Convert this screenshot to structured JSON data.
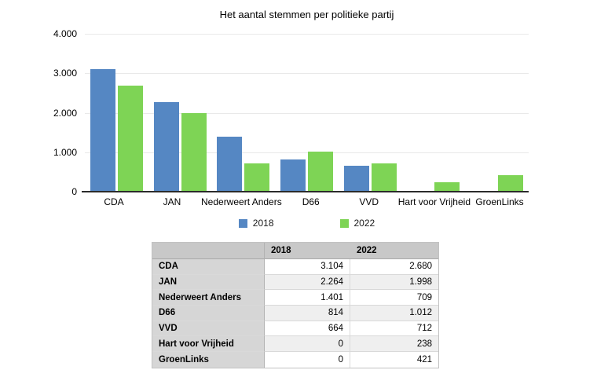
{
  "chart_data": {
    "type": "bar",
    "title": "Het aantal stemmen per politieke partij",
    "categories": [
      "CDA",
      "JAN",
      "Nederweert Anders",
      "D66",
      "VVD",
      "Hart voor Vrijheid",
      "GroenLinks"
    ],
    "series": [
      {
        "name": "2018",
        "color": "#5587c3",
        "values": [
          3104,
          2264,
          1401,
          814,
          664,
          0,
          0
        ]
      },
      {
        "name": "2022",
        "color": "#7ed455",
        "values": [
          2680,
          1998,
          709,
          1012,
          712,
          238,
          421
        ]
      }
    ],
    "xlabel": "",
    "ylabel": "",
    "ylim": [
      0,
      4000
    ],
    "y_ticks": [
      {
        "value": 0,
        "label": "0"
      },
      {
        "value": 1000,
        "label": "1.000"
      },
      {
        "value": 2000,
        "label": "2.000"
      },
      {
        "value": 3000,
        "label": "3.000"
      },
      {
        "value": 4000,
        "label": "4.000"
      }
    ],
    "grid": true,
    "legend_position": "bottom"
  },
  "table": {
    "headers": [
      "",
      "2018",
      "2022"
    ],
    "rows": [
      {
        "label": "CDA",
        "v2018": "3.104",
        "v2022": "2.680"
      },
      {
        "label": "JAN",
        "v2018": "2.264",
        "v2022": "1.998"
      },
      {
        "label": "Nederweert Anders",
        "v2018": "1.401",
        "v2022": "709"
      },
      {
        "label": "D66",
        "v2018": "814",
        "v2022": "1.012"
      },
      {
        "label": "VVD",
        "v2018": "664",
        "v2022": "712"
      },
      {
        "label": "Hart voor Vrijheid",
        "v2018": "0",
        "v2022": "238"
      },
      {
        "label": "GroenLinks",
        "v2018": "0",
        "v2022": "421"
      }
    ]
  },
  "colors": {
    "gridline": "#e9e9e9",
    "axis": "#2b2b2b",
    "table_header_bg": "#c8c8c8",
    "table_label_bg": "#d6d6d6",
    "table_alt_row_bg": "#efefef"
  }
}
